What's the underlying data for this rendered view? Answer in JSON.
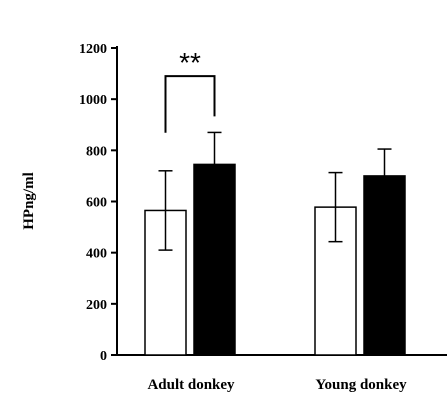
{
  "chart_data": {
    "type": "bar",
    "categories": [
      "Adult donkey",
      "Young donkey"
    ],
    "series": [
      {
        "values": [
          565,
          578
        ],
        "errors": [
          155,
          135
        ],
        "fill": "#ffffff"
      },
      {
        "values": [
          745,
          700
        ],
        "errors": [
          125,
          105
        ],
        "fill": "#000000"
      }
    ],
    "ylabel": "HPng/ml",
    "ylim": [
      0,
      1200
    ],
    "yticks": [
      0,
      200,
      400,
      600,
      800,
      1000,
      1200
    ],
    "annotation": {
      "text": "**",
      "category": 0
    }
  }
}
